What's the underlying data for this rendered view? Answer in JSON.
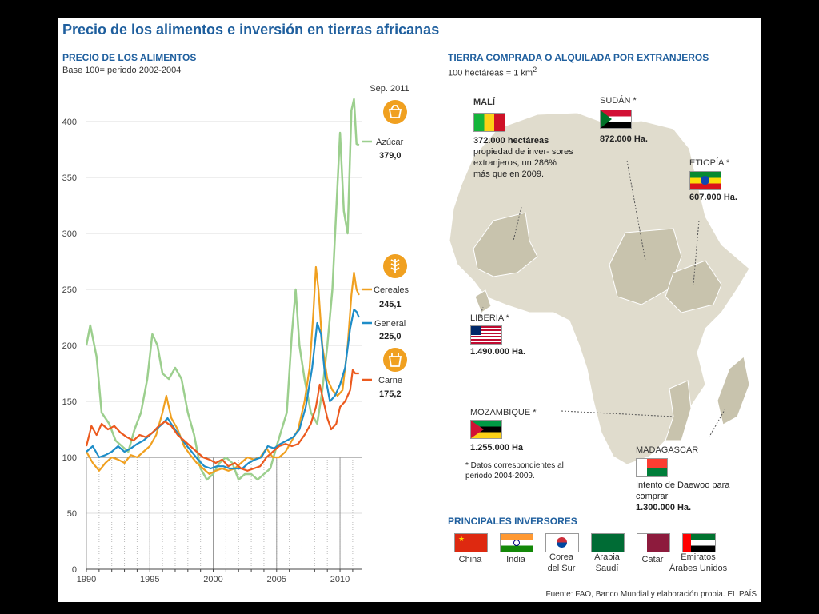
{
  "title": "Precio de los alimentos e inversión en tierras africanas",
  "left": {
    "heading": "PRECIO DE LOS ALIMENTOS",
    "subheading": "Base 100= periodo 2002-2004",
    "date_label": "Sep. 2011"
  },
  "colors": {
    "azucar": "#9ccf8e",
    "cereales": "#f0a020",
    "general": "#1e8dc8",
    "carne": "#ec5a1e",
    "accent": "#1f5f9e"
  },
  "chart_data": {
    "type": "line",
    "x_unit": "year",
    "xlim": [
      1990,
      2011.7
    ],
    "ylim": [
      0,
      430
    ],
    "xticks": [
      "1990",
      "1995",
      "2000",
      "2005",
      "2010"
    ],
    "yticks": [
      "0",
      "50",
      "100",
      "150",
      "200",
      "250",
      "300",
      "350",
      "400"
    ],
    "series": [
      {
        "name": "Azúcar",
        "end_value": "379,0",
        "color": "#9ccf8e",
        "points": [
          [
            1990,
            200
          ],
          [
            1990.3,
            218
          ],
          [
            1990.8,
            190
          ],
          [
            1991.2,
            140
          ],
          [
            1991.8,
            130
          ],
          [
            1992.3,
            115
          ],
          [
            1992.8,
            110
          ],
          [
            1993.3,
            105
          ],
          [
            1993.8,
            125
          ],
          [
            1994.3,
            140
          ],
          [
            1994.8,
            170
          ],
          [
            1995.2,
            210
          ],
          [
            1995.6,
            200
          ],
          [
            1996,
            175
          ],
          [
            1996.5,
            170
          ],
          [
            1997,
            180
          ],
          [
            1997.5,
            170
          ],
          [
            1998,
            140
          ],
          [
            1998.5,
            120
          ],
          [
            1999,
            90
          ],
          [
            1999.5,
            80
          ],
          [
            2000,
            85
          ],
          [
            2000.5,
            95
          ],
          [
            2001,
            100
          ],
          [
            2001.5,
            95
          ],
          [
            2002,
            80
          ],
          [
            2002.5,
            85
          ],
          [
            2003,
            85
          ],
          [
            2003.5,
            80
          ],
          [
            2004,
            85
          ],
          [
            2004.5,
            90
          ],
          [
            2005,
            110
          ],
          [
            2005.4,
            125
          ],
          [
            2005.8,
            140
          ],
          [
            2006.2,
            210
          ],
          [
            2006.5,
            250
          ],
          [
            2006.8,
            200
          ],
          [
            2007.2,
            170
          ],
          [
            2007.7,
            140
          ],
          [
            2008.2,
            130
          ],
          [
            2008.6,
            160
          ],
          [
            2009,
            200
          ],
          [
            2009.4,
            250
          ],
          [
            2009.7,
            320
          ],
          [
            2010,
            390
          ],
          [
            2010.3,
            320
          ],
          [
            2010.6,
            300
          ],
          [
            2010.9,
            410
          ],
          [
            2011.1,
            420
          ],
          [
            2011.3,
            380
          ],
          [
            2011.5,
            379
          ]
        ]
      },
      {
        "name": "Cereales",
        "end_value": "245,1",
        "color": "#f0a020",
        "points": [
          [
            1990,
            105
          ],
          [
            1990.5,
            95
          ],
          [
            1991,
            88
          ],
          [
            1991.5,
            95
          ],
          [
            1992,
            100
          ],
          [
            1992.5,
            98
          ],
          [
            1993,
            95
          ],
          [
            1993.5,
            102
          ],
          [
            1994,
            100
          ],
          [
            1994.5,
            105
          ],
          [
            1995,
            110
          ],
          [
            1995.5,
            120
          ],
          [
            1996,
            140
          ],
          [
            1996.3,
            155
          ],
          [
            1996.7,
            135
          ],
          [
            1997.2,
            125
          ],
          [
            1997.7,
            110
          ],
          [
            1998.2,
            102
          ],
          [
            1998.7,
            95
          ],
          [
            1999.2,
            90
          ],
          [
            1999.7,
            85
          ],
          [
            2000.2,
            88
          ],
          [
            2000.7,
            90
          ],
          [
            2001.2,
            88
          ],
          [
            2001.7,
            90
          ],
          [
            2002.2,
            95
          ],
          [
            2002.7,
            100
          ],
          [
            2003.2,
            98
          ],
          [
            2003.7,
            100
          ],
          [
            2004.2,
            108
          ],
          [
            2004.7,
            100
          ],
          [
            2005.2,
            100
          ],
          [
            2005.7,
            105
          ],
          [
            2006.2,
            115
          ],
          [
            2006.7,
            125
          ],
          [
            2007.2,
            150
          ],
          [
            2007.6,
            180
          ],
          [
            2007.9,
            230
          ],
          [
            2008.1,
            270
          ],
          [
            2008.3,
            250
          ],
          [
            2008.6,
            200
          ],
          [
            2009,
            170
          ],
          [
            2009.4,
            160
          ],
          [
            2009.8,
            155
          ],
          [
            2010.2,
            160
          ],
          [
            2010.6,
            200
          ],
          [
            2010.9,
            245
          ],
          [
            2011.1,
            265
          ],
          [
            2011.3,
            250
          ],
          [
            2011.5,
            245
          ]
        ]
      },
      {
        "name": "General",
        "end_value": "225,0",
        "color": "#1e8dc8",
        "points": [
          [
            1990,
            105
          ],
          [
            1990.5,
            110
          ],
          [
            1991,
            100
          ],
          [
            1991.5,
            102
          ],
          [
            1992,
            105
          ],
          [
            1992.5,
            110
          ],
          [
            1993,
            105
          ],
          [
            1993.5,
            108
          ],
          [
            1994,
            112
          ],
          [
            1994.5,
            115
          ],
          [
            1995,
            120
          ],
          [
            1995.5,
            125
          ],
          [
            1996,
            130
          ],
          [
            1996.4,
            135
          ],
          [
            1996.8,
            128
          ],
          [
            1997.3,
            120
          ],
          [
            1997.8,
            112
          ],
          [
            1998.3,
            105
          ],
          [
            1998.8,
            98
          ],
          [
            1999.3,
            92
          ],
          [
            1999.8,
            90
          ],
          [
            2000.3,
            92
          ],
          [
            2000.8,
            92
          ],
          [
            2001.3,
            90
          ],
          [
            2001.8,
            90
          ],
          [
            2002.3,
            90
          ],
          [
            2002.8,
            95
          ],
          [
            2003.3,
            98
          ],
          [
            2003.8,
            100
          ],
          [
            2004.3,
            110
          ],
          [
            2004.8,
            108
          ],
          [
            2005.3,
            112
          ],
          [
            2005.8,
            115
          ],
          [
            2006.3,
            118
          ],
          [
            2006.8,
            125
          ],
          [
            2007.3,
            145
          ],
          [
            2007.8,
            180
          ],
          [
            2008.2,
            220
          ],
          [
            2008.5,
            210
          ],
          [
            2008.8,
            175
          ],
          [
            2009.2,
            150
          ],
          [
            2009.6,
            155
          ],
          [
            2010,
            165
          ],
          [
            2010.4,
            180
          ],
          [
            2010.8,
            215
          ],
          [
            2011.1,
            232
          ],
          [
            2011.3,
            230
          ],
          [
            2011.5,
            225
          ]
        ]
      },
      {
        "name": "Carne",
        "end_value": "175,2",
        "color": "#ec5a1e",
        "points": [
          [
            1990,
            110
          ],
          [
            1990.4,
            128
          ],
          [
            1990.8,
            120
          ],
          [
            1991.2,
            130
          ],
          [
            1991.7,
            125
          ],
          [
            1992.2,
            128
          ],
          [
            1992.7,
            122
          ],
          [
            1993.2,
            118
          ],
          [
            1993.7,
            115
          ],
          [
            1994.2,
            120
          ],
          [
            1994.7,
            118
          ],
          [
            1995.2,
            122
          ],
          [
            1995.7,
            128
          ],
          [
            1996.2,
            132
          ],
          [
            1996.7,
            128
          ],
          [
            1997.2,
            120
          ],
          [
            1997.7,
            115
          ],
          [
            1998.2,
            110
          ],
          [
            1998.7,
            105
          ],
          [
            1999.2,
            100
          ],
          [
            1999.7,
            98
          ],
          [
            2000.2,
            95
          ],
          [
            2000.7,
            98
          ],
          [
            2001.2,
            92
          ],
          [
            2001.7,
            95
          ],
          [
            2002.2,
            90
          ],
          [
            2002.7,
            88
          ],
          [
            2003.2,
            90
          ],
          [
            2003.7,
            92
          ],
          [
            2004.2,
            100
          ],
          [
            2004.7,
            105
          ],
          [
            2005.2,
            110
          ],
          [
            2005.7,
            112
          ],
          [
            2006.2,
            110
          ],
          [
            2006.7,
            112
          ],
          [
            2007.2,
            120
          ],
          [
            2007.7,
            130
          ],
          [
            2008.1,
            145
          ],
          [
            2008.4,
            165
          ],
          [
            2008.7,
            150
          ],
          [
            2009,
            135
          ],
          [
            2009.3,
            125
          ],
          [
            2009.7,
            130
          ],
          [
            2010,
            145
          ],
          [
            2010.4,
            150
          ],
          [
            2010.8,
            160
          ],
          [
            2011,
            178
          ],
          [
            2011.2,
            175
          ],
          [
            2011.5,
            175
          ]
        ]
      }
    ]
  },
  "right": {
    "heading": "TIERRA COMPRADA O ALQUILADA POR EXTRANJEROS",
    "sub_prefix": "100 hectáreas  = 1 km",
    "sub_sup": "2",
    "mali": {
      "name": "MALÍ",
      "value": "372.000 hectáreas",
      "desc": "propiedad de inver- sores extranjeros, un 286% más que en 2009."
    },
    "sudan": {
      "name": "SUDÁN *",
      "value": "872.000 Ha."
    },
    "etiopia": {
      "name": "ETIOPÍA *",
      "value": "607.000 Ha."
    },
    "liberia": {
      "name": "LIBERIA *",
      "value": "1.490.000 Ha."
    },
    "mozambique": {
      "name": "MOZAMBIQUE *",
      "value": "1.255.000 Ha"
    },
    "note": "* Datos correspondientes al periodo 2004-2009.",
    "madagascar": {
      "name": "MADAGASCAR",
      "desc": "Intento de Daewoo para comprar",
      "value": "1.300.000 Ha."
    }
  },
  "investors": {
    "heading": "PRINCIPALES INVERSORES",
    "items": [
      {
        "line1": "China",
        "line2": ""
      },
      {
        "line1": "India",
        "line2": ""
      },
      {
        "line1": "Corea",
        "line2": "del Sur"
      },
      {
        "line1": "Arabia",
        "line2": "Saudí"
      },
      {
        "line1": "Catar",
        "line2": ""
      },
      {
        "line1": "Emiratos",
        "line2": "Árabes Unidos"
      }
    ]
  },
  "source": "Fuente: FAO, Banco Mundial y elaboración propia.  EL PAÍS"
}
